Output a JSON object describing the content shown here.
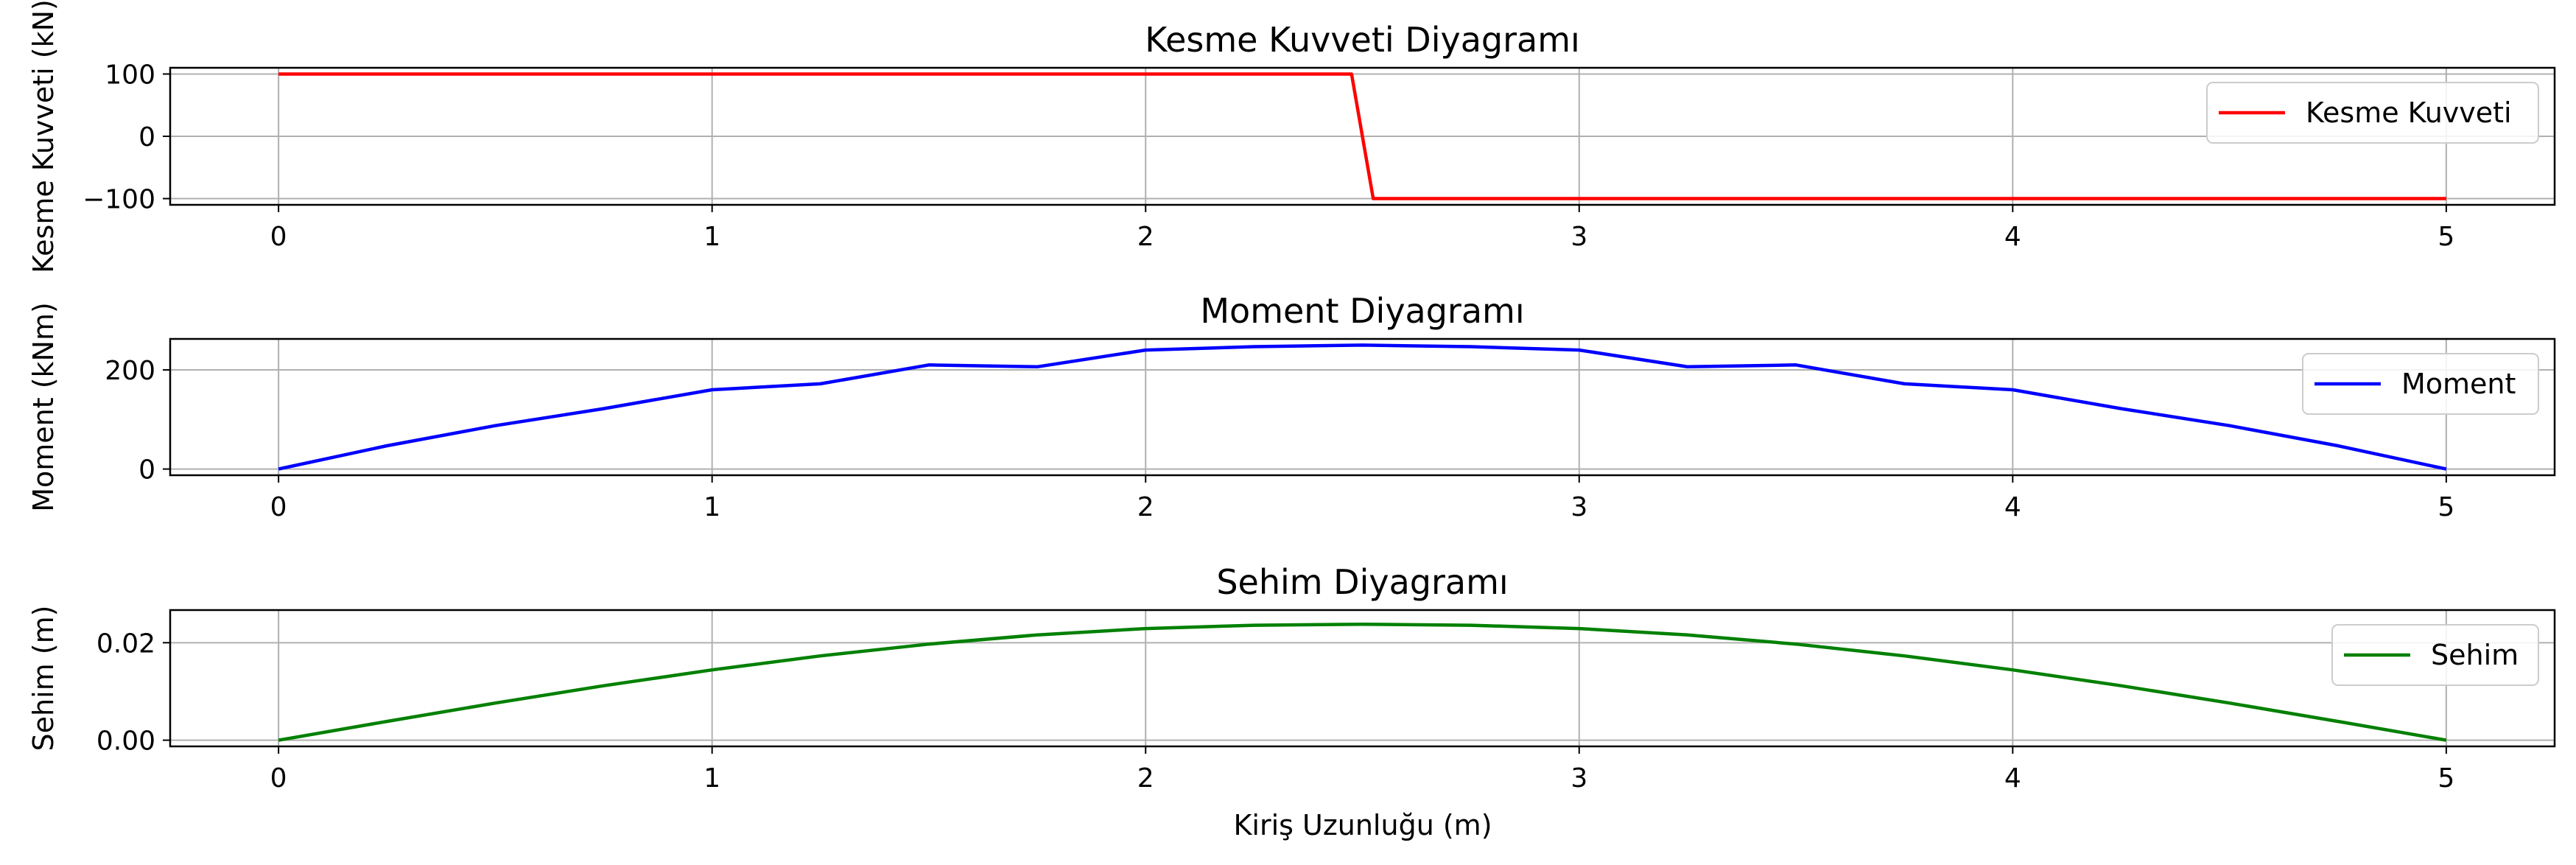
{
  "figure": {
    "xlabel": "Kiriş Uzunluğu (m)"
  },
  "chart_data": [
    {
      "type": "line",
      "title": "Kesme Kuvveti Diyagramı",
      "xlabel": "",
      "ylabel": "Kesme Kuvveti (kN)",
      "xlim": [
        -0.25,
        5.25
      ],
      "ylim": [
        -110,
        110
      ],
      "xticks": [
        0,
        1,
        2,
        3,
        4,
        5
      ],
      "yticks": [
        100,
        0,
        -100
      ],
      "grid": true,
      "legend_position": "top-right",
      "series": [
        {
          "name": "Kesme Kuvveti",
          "color": "#ff0000",
          "x": [
            0,
            2.475,
            2.525,
            5
          ],
          "y": [
            100,
            100,
            -100,
            -100
          ]
        }
      ]
    },
    {
      "type": "line",
      "title": "Moment Diyagramı",
      "xlabel": "",
      "ylabel": "Moment (kNm)",
      "xlim": [
        -0.25,
        5.25
      ],
      "ylim": [
        -12.5,
        262.5
      ],
      "xticks": [
        0,
        1,
        2,
        3,
        4,
        5
      ],
      "yticks": [
        200,
        0
      ],
      "grid": true,
      "legend_position": "top-right",
      "series": [
        {
          "name": "Moment",
          "color": "#0000ff",
          "x": [
            0,
            0.25,
            0.5,
            0.75,
            1,
            1.25,
            1.5,
            1.75,
            2,
            2.25,
            2.5,
            2.75,
            3,
            3.25,
            3.5,
            3.75,
            4,
            4.25,
            4.5,
            4.75,
            5
          ],
          "y": [
            0,
            46.9,
            87.5,
            121.9,
            160,
            171.9,
            210,
            206.3,
            240,
            246.9,
            250,
            246.9,
            240,
            206.3,
            210,
            171.9,
            160,
            121.9,
            87.5,
            46.9,
            0
          ]
        }
      ]
    },
    {
      "type": "line",
      "title": "Sehim Diyagramı",
      "xlabel": "Kiriş Uzunluğu (m)",
      "ylabel": "Sehim (m)",
      "xlim": [
        -0.25,
        5.25
      ],
      "ylim": [
        -0.00127,
        0.0267
      ],
      "xticks": [
        0,
        1,
        2,
        3,
        4,
        5
      ],
      "yticks": [
        0.02,
        0.0
      ],
      "ytick_labels": [
        "0.02",
        "0.00"
      ],
      "grid": true,
      "legend_position": "top-right",
      "series": [
        {
          "name": "Sehim",
          "color": "#008000",
          "x": [
            0,
            0.25,
            0.5,
            0.75,
            1,
            1.25,
            1.5,
            1.75,
            2,
            2.25,
            2.5,
            2.75,
            3,
            3.25,
            3.5,
            3.75,
            4,
            4.25,
            4.5,
            4.75,
            5
          ],
          "y": [
            0,
            0.00386,
            0.00762,
            0.01117,
            0.01443,
            0.0173,
            0.01972,
            0.0216,
            0.0229,
            0.02358,
            0.0238,
            0.02358,
            0.0229,
            0.0216,
            0.01972,
            0.0173,
            0.01443,
            0.01117,
            0.00762,
            0.00386,
            0
          ]
        }
      ]
    }
  ]
}
